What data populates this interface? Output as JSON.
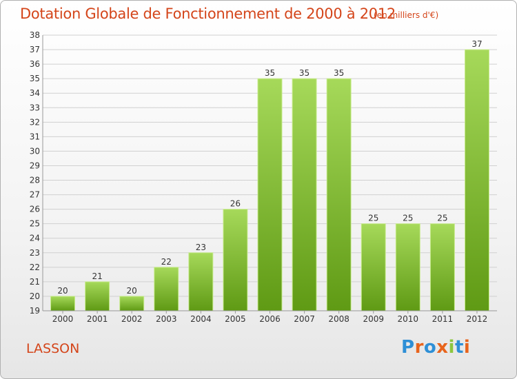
{
  "header": {
    "title": "Dotation Globale de Fonctionnement de 2000 à 2012",
    "unit": "(en milliers d'€)"
  },
  "footer": {
    "commune": "LASSON",
    "logo_text": "Proxiti",
    "logo_colors": [
      "#2e8fd6",
      "#e8641c",
      "#2e8fd6",
      "#e8641c",
      "#8cc63f",
      "#2e8fd6",
      "#e8641c"
    ]
  },
  "colors": {
    "title": "#d4451a",
    "bar_light": "#a6d95a",
    "bar_dark": "#5f9a14",
    "grid": "#d0d0d0",
    "axis": "#999999"
  },
  "chart_data": {
    "type": "bar",
    "categories": [
      "2000",
      "2001",
      "2002",
      "2003",
      "2004",
      "2005",
      "2006",
      "2007",
      "2008",
      "2009",
      "2010",
      "2011",
      "2012"
    ],
    "values": [
      20,
      21,
      20,
      22,
      23,
      26,
      35,
      35,
      35,
      25,
      25,
      25,
      37
    ],
    "ylim": [
      19,
      38
    ],
    "yticks": [
      19,
      20,
      21,
      22,
      23,
      24,
      25,
      26,
      27,
      28,
      29,
      30,
      31,
      32,
      33,
      34,
      35,
      36,
      37,
      38
    ],
    "grid": true,
    "title": "Dotation Globale de Fonctionnement de 2000 à 2012",
    "xlabel": "",
    "ylabel": ""
  }
}
